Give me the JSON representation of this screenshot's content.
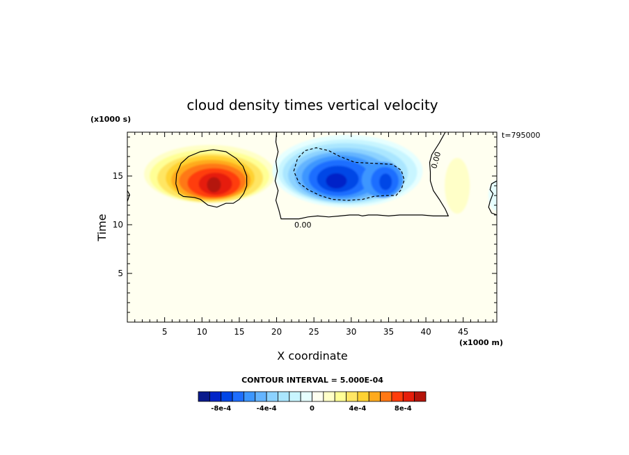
{
  "chart_data": {
    "type": "heatmap",
    "title": "cloud density times vertical velocity",
    "xlabel": "X coordinate",
    "ylabel": "Time",
    "x_units": "(x1000 m)",
    "y_units": "(x1000 s)",
    "annotation": "t=795000",
    "contour_interval_text": "CONTOUR INTERVAL = 5.000E-04",
    "xlim": [
      0,
      49.5
    ],
    "ylim": [
      0,
      19.5
    ],
    "x_ticks": [
      5,
      10,
      15,
      20,
      25,
      30,
      35,
      40,
      45
    ],
    "y_ticks": [
      5,
      10,
      15
    ],
    "zero_contour_label": "0.00",
    "features": [
      {
        "kind": "maximum",
        "x_center": 11.5,
        "y_center": 14.0,
        "peak": 0.00095
      },
      {
        "kind": "minimum",
        "x_center": 28.0,
        "y_center": 14.5,
        "peak": -0.00085
      },
      {
        "kind": "minimum",
        "x_center": 34.5,
        "y_center": 14.5,
        "peak": -0.0006
      },
      {
        "kind": "weak_maximum",
        "x_center": 44.2,
        "y_center": 14.0,
        "peak": 0.0002
      },
      {
        "kind": "weak_minimum",
        "x_center": 49.0,
        "y_center": 13.0,
        "peak": -0.0001
      }
    ],
    "colorbar": {
      "levels": [
        -0.001,
        -0.0009,
        -0.0008,
        -0.0007,
        -0.0006,
        -0.0005,
        -0.0004,
        -0.0003,
        -0.0002,
        -0.0001,
        0,
        0.0001,
        0.0002,
        0.0003,
        0.0004,
        0.0005,
        0.0006,
        0.0007,
        0.0008,
        0.0009,
        0.001
      ],
      "colors": [
        "#0a1a8c",
        "#0024c8",
        "#0046e6",
        "#1e6eff",
        "#3c96ff",
        "#64b4ff",
        "#8cd2ff",
        "#aae6ff",
        "#c8f5ff",
        "#e6ffff",
        "#fffff0",
        "#ffffc8",
        "#ffff96",
        "#ffe664",
        "#ffd232",
        "#ffaa1e",
        "#ff7814",
        "#ff3c0a",
        "#e61e0a",
        "#b4140a"
      ],
      "tick_labels": [
        "-8e-4",
        "-4e-4",
        "0",
        "4e-4",
        "8e-4"
      ],
      "tick_values": [
        -0.0008,
        -0.0004,
        0,
        0.0004,
        0.0008
      ]
    }
  }
}
